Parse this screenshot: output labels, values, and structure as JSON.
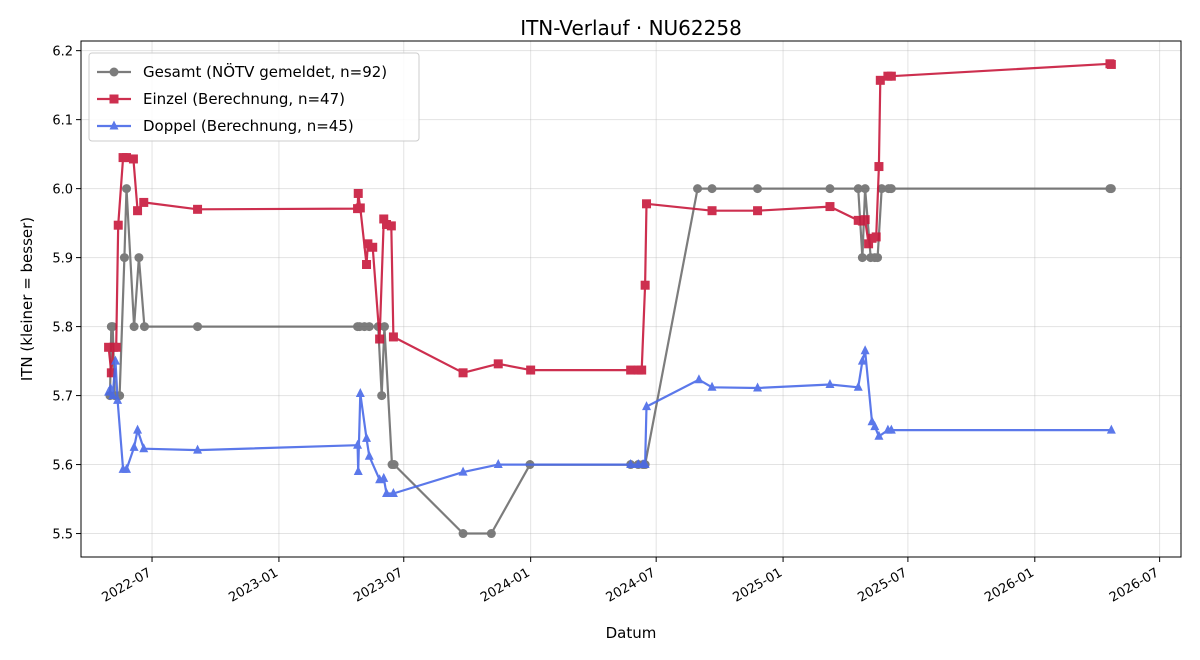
{
  "chart_data": {
    "type": "line",
    "title": "ITN-Verlauf · NU62258",
    "xlabel": "Datum",
    "ylabel": "ITN  (kleiner = besser)",
    "xlim": [
      "2022-03-20",
      "2026-08-01"
    ],
    "ylim": [
      5.466,
      6.214
    ],
    "x_ticks": [
      "2022-07",
      "2023-01",
      "2023-07",
      "2024-01",
      "2024-07",
      "2025-01",
      "2025-07",
      "2026-01",
      "2026-07"
    ],
    "y_ticks": [
      "5.5",
      "5.6",
      "5.7",
      "5.8",
      "5.9",
      "6.0",
      "6.1",
      "6.2"
    ],
    "grid": true,
    "legend_position": "top-left",
    "series": [
      {
        "name": "Gesamt (NÖTV gemeldet, n=92)",
        "color": "#666666",
        "marker": "circle",
        "points": [
          [
            "2022-05-01",
            5.7
          ],
          [
            "2022-05-03",
            5.8
          ],
          [
            "2022-05-05",
            5.8
          ],
          [
            "2022-05-08",
            5.7
          ],
          [
            "2022-05-15",
            5.7
          ],
          [
            "2022-05-22",
            5.9
          ],
          [
            "2022-05-25",
            6.0
          ],
          [
            "2022-06-05",
            5.8
          ],
          [
            "2022-06-12",
            5.9
          ],
          [
            "2022-06-20",
            5.8
          ],
          [
            "2022-09-05",
            5.8
          ],
          [
            "2023-04-25",
            5.8
          ],
          [
            "2023-04-28",
            5.8
          ],
          [
            "2023-05-05",
            5.8
          ],
          [
            "2023-05-12",
            5.8
          ],
          [
            "2023-05-25",
            5.8
          ],
          [
            "2023-05-30",
            5.7
          ],
          [
            "2023-06-03",
            5.8
          ],
          [
            "2023-06-14",
            5.6
          ],
          [
            "2023-06-17",
            5.6
          ],
          [
            "2023-09-25",
            5.5
          ],
          [
            "2023-11-05",
            5.5
          ],
          [
            "2023-12-31",
            5.6
          ],
          [
            "2024-05-25",
            5.6
          ],
          [
            "2024-06-05",
            5.6
          ],
          [
            "2024-06-12",
            5.6
          ],
          [
            "2024-06-15",
            5.6
          ],
          [
            "2024-08-30",
            6.0
          ],
          [
            "2024-09-20",
            6.0
          ],
          [
            "2024-11-25",
            6.0
          ],
          [
            "2025-03-10",
            6.0
          ],
          [
            "2025-04-20",
            6.0
          ],
          [
            "2025-04-26",
            5.9
          ],
          [
            "2025-04-30",
            6.0
          ],
          [
            "2025-05-08",
            5.9
          ],
          [
            "2025-05-14",
            5.9
          ],
          [
            "2025-05-18",
            5.9
          ],
          [
            "2025-05-24",
            6.0
          ],
          [
            "2025-06-03",
            6.0
          ],
          [
            "2025-06-07",
            6.0
          ],
          [
            "2026-04-20",
            6.0
          ],
          [
            "2026-04-22",
            6.0
          ]
        ]
      },
      {
        "name": "Einzel (Berechnung, n=47)",
        "color": "#c8193c",
        "marker": "square",
        "points": [
          [
            "2022-04-29",
            5.77
          ],
          [
            "2022-05-03",
            5.733
          ],
          [
            "2022-05-06",
            5.77
          ],
          [
            "2022-05-10",
            5.77
          ],
          [
            "2022-05-13",
            5.947
          ],
          [
            "2022-05-20",
            6.045
          ],
          [
            "2022-05-25",
            6.045
          ],
          [
            "2022-06-04",
            6.043
          ],
          [
            "2022-06-10",
            5.968
          ],
          [
            "2022-06-19",
            5.98
          ],
          [
            "2022-09-05",
            5.97
          ],
          [
            "2023-04-25",
            5.971
          ],
          [
            "2023-04-26",
            5.993
          ],
          [
            "2023-04-29",
            5.972
          ],
          [
            "2023-05-08",
            5.89
          ],
          [
            "2023-05-10",
            5.92
          ],
          [
            "2023-05-17",
            5.915
          ],
          [
            "2023-05-27",
            5.782
          ],
          [
            "2023-06-02",
            5.956
          ],
          [
            "2023-06-06",
            5.948
          ],
          [
            "2023-06-13",
            5.946
          ],
          [
            "2023-06-16",
            5.785
          ],
          [
            "2023-09-25",
            5.733
          ],
          [
            "2023-11-15",
            5.746
          ],
          [
            "2024-01-01",
            5.737
          ],
          [
            "2024-05-25",
            5.737
          ],
          [
            "2024-06-05",
            5.737
          ],
          [
            "2024-06-10",
            5.737
          ],
          [
            "2024-06-15",
            5.86
          ],
          [
            "2024-06-17",
            5.978
          ],
          [
            "2024-09-20",
            5.968
          ],
          [
            "2024-11-25",
            5.968
          ],
          [
            "2025-03-10",
            5.974
          ],
          [
            "2025-04-20",
            5.954
          ],
          [
            "2025-04-26",
            5.953
          ],
          [
            "2025-04-30",
            5.955
          ],
          [
            "2025-05-05",
            5.92
          ],
          [
            "2025-05-10",
            5.928
          ],
          [
            "2025-05-16",
            5.93
          ],
          [
            "2025-05-20",
            6.032
          ],
          [
            "2025-05-22",
            6.157
          ],
          [
            "2025-06-02",
            6.163
          ],
          [
            "2025-06-07",
            6.163
          ],
          [
            "2026-04-20",
            6.181
          ],
          [
            "2026-04-22",
            6.18
          ]
        ]
      },
      {
        "name": "Doppel (Berechnung, n=45)",
        "color": "#4a6ae8",
        "marker": "triangle",
        "points": [
          [
            "2022-04-29",
            5.705
          ],
          [
            "2022-05-02",
            5.71
          ],
          [
            "2022-05-05",
            5.7
          ],
          [
            "2022-05-09",
            5.75
          ],
          [
            "2022-05-12",
            5.693
          ],
          [
            "2022-05-20",
            5.593
          ],
          [
            "2022-05-25",
            5.593
          ],
          [
            "2022-06-05",
            5.625
          ],
          [
            "2022-06-10",
            5.65
          ],
          [
            "2022-06-19",
            5.623
          ],
          [
            "2022-09-05",
            5.621
          ],
          [
            "2023-04-25",
            5.628
          ],
          [
            "2023-04-26",
            5.59
          ],
          [
            "2023-04-29",
            5.703
          ],
          [
            "2023-05-08",
            5.638
          ],
          [
            "2023-05-12",
            5.612
          ],
          [
            "2023-05-27",
            5.578
          ],
          [
            "2023-06-02",
            5.58
          ],
          [
            "2023-06-06",
            5.558
          ],
          [
            "2023-06-16",
            5.558
          ],
          [
            "2023-09-25",
            5.589
          ],
          [
            "2023-11-15",
            5.6
          ],
          [
            "2024-05-25",
            5.6
          ],
          [
            "2024-06-05",
            5.6
          ],
          [
            "2024-06-12",
            5.6
          ],
          [
            "2024-06-15",
            5.6
          ],
          [
            "2024-06-17",
            5.684
          ],
          [
            "2024-09-01",
            5.723
          ],
          [
            "2024-09-20",
            5.712
          ],
          [
            "2024-11-25",
            5.711
          ],
          [
            "2025-03-10",
            5.716
          ],
          [
            "2025-04-20",
            5.712
          ],
          [
            "2025-04-26",
            5.75
          ],
          [
            "2025-04-30",
            5.765
          ],
          [
            "2025-05-10",
            5.662
          ],
          [
            "2025-05-14",
            5.655
          ],
          [
            "2025-05-20",
            5.641
          ],
          [
            "2025-06-02",
            5.65
          ],
          [
            "2025-06-07",
            5.65
          ],
          [
            "2026-04-22",
            5.65
          ]
        ]
      }
    ]
  }
}
